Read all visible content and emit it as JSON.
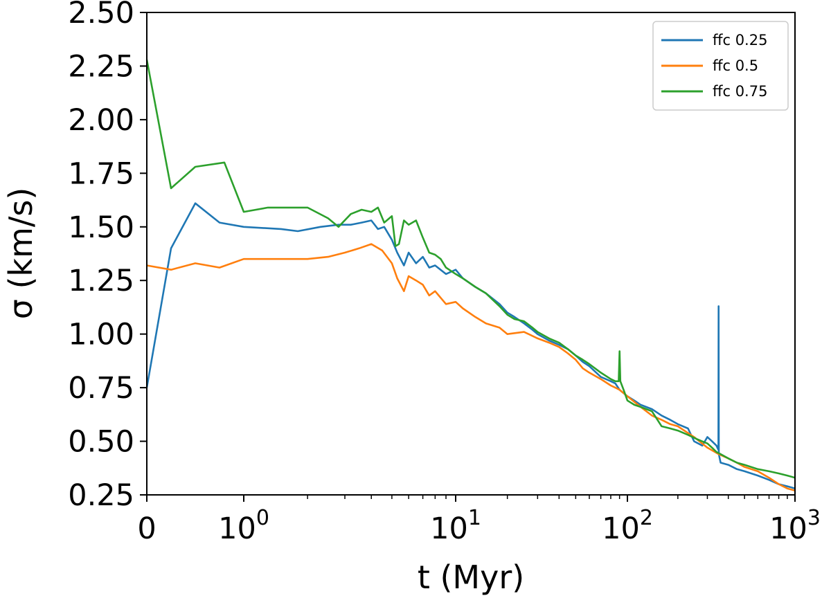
{
  "chart_data": {
    "type": "line",
    "title": "",
    "xlabel": "t (Myr)",
    "ylabel": "σ (km/s)",
    "xscale": "symlog",
    "xlim": [
      0,
      1000
    ],
    "ylim": [
      0.25,
      2.5
    ],
    "grid": false,
    "legend_position": "top-right",
    "x_ticks": [
      {
        "value": 0,
        "base": "0",
        "exp": ""
      },
      {
        "value": 1,
        "base": "10",
        "exp": "0"
      },
      {
        "value": 10,
        "base": "10",
        "exp": "1"
      },
      {
        "value": 100,
        "base": "10",
        "exp": "2"
      },
      {
        "value": 1000,
        "base": "10",
        "exp": "3"
      }
    ],
    "y_ticks": [
      "0.25",
      "0.50",
      "0.75",
      "1.00",
      "1.25",
      "1.50",
      "1.75",
      "2.00",
      "2.25",
      "2.50"
    ],
    "series": [
      {
        "name": "ffc 0.25",
        "color": "#1f77b4",
        "x": [
          0,
          0.25,
          0.5,
          0.75,
          1.0,
          1.5,
          1.8,
          2.3,
          2.8,
          3.2,
          3.6,
          4.0,
          4.3,
          4.6,
          5.0,
          5.3,
          5.7,
          6.0,
          6.5,
          7.0,
          7.5,
          8.0,
          9.0,
          10,
          11,
          13,
          15,
          18,
          20,
          22,
          25,
          28,
          30,
          35,
          40,
          45,
          50,
          55,
          60,
          70,
          80,
          85,
          90,
          100,
          110,
          120,
          140,
          160,
          180,
          200,
          230,
          250,
          280,
          300,
          320,
          340,
          349,
          350,
          351,
          360,
          400,
          450,
          500,
          600,
          700,
          800,
          900,
          1000
        ],
        "y": [
          0.75,
          1.4,
          1.61,
          1.52,
          1.5,
          1.49,
          1.48,
          1.5,
          1.51,
          1.51,
          1.52,
          1.53,
          1.49,
          1.5,
          1.44,
          1.38,
          1.32,
          1.38,
          1.33,
          1.36,
          1.31,
          1.32,
          1.28,
          1.3,
          1.26,
          1.22,
          1.19,
          1.14,
          1.1,
          1.08,
          1.05,
          1.02,
          1.0,
          0.97,
          0.95,
          0.93,
          0.9,
          0.87,
          0.85,
          0.8,
          0.78,
          0.77,
          0.74,
          0.71,
          0.69,
          0.67,
          0.65,
          0.62,
          0.6,
          0.58,
          0.56,
          0.5,
          0.48,
          0.52,
          0.5,
          0.48,
          0.46,
          1.13,
          0.44,
          0.4,
          0.39,
          0.37,
          0.36,
          0.34,
          0.32,
          0.3,
          0.29,
          0.28
        ]
      },
      {
        "name": "ffc 0.5",
        "color": "#ff7f0e",
        "x": [
          0,
          0.25,
          0.5,
          0.75,
          1.0,
          1.5,
          2.0,
          2.5,
          3.0,
          3.5,
          4.0,
          4.5,
          5.0,
          5.3,
          5.7,
          6.0,
          6.5,
          7.0,
          7.5,
          8.0,
          9.0,
          10,
          11,
          13,
          15,
          18,
          20,
          25,
          30,
          35,
          40,
          45,
          50,
          55,
          60,
          70,
          80,
          85,
          90,
          100,
          120,
          140,
          160,
          180,
          200,
          250,
          300,
          350,
          400,
          450,
          500,
          600,
          700,
          800,
          900,
          1000
        ],
        "y": [
          1.32,
          1.3,
          1.33,
          1.31,
          1.35,
          1.35,
          1.35,
          1.36,
          1.38,
          1.4,
          1.42,
          1.39,
          1.33,
          1.26,
          1.2,
          1.27,
          1.25,
          1.23,
          1.18,
          1.2,
          1.14,
          1.15,
          1.12,
          1.08,
          1.05,
          1.03,
          1.0,
          1.01,
          0.98,
          0.96,
          0.94,
          0.91,
          0.88,
          0.84,
          0.82,
          0.79,
          0.76,
          0.75,
          0.74,
          0.71,
          0.66,
          0.62,
          0.6,
          0.58,
          0.57,
          0.52,
          0.47,
          0.44,
          0.42,
          0.4,
          0.38,
          0.36,
          0.33,
          0.3,
          0.28,
          0.27
        ]
      },
      {
        "name": "ffc 0.75",
        "color": "#2ca02c",
        "x": [
          0,
          0.25,
          0.5,
          0.8,
          1.0,
          1.3,
          2.0,
          2.5,
          2.8,
          3.2,
          3.6,
          4.0,
          4.3,
          4.6,
          5.0,
          5.2,
          5.4,
          5.7,
          6.0,
          6.5,
          7.0,
          7.5,
          8.0,
          8.5,
          9.0,
          10,
          11,
          13,
          15,
          18,
          20,
          22,
          25,
          28,
          30,
          35,
          40,
          45,
          50,
          55,
          60,
          70,
          80,
          85,
          89,
          90,
          91,
          95,
          100,
          110,
          120,
          140,
          160,
          180,
          200,
          230,
          260,
          300,
          320,
          340,
          360,
          400,
          450,
          500,
          600,
          700,
          800,
          900,
          1000
        ],
        "y": [
          2.28,
          1.68,
          1.78,
          1.8,
          1.57,
          1.59,
          1.59,
          1.54,
          1.5,
          1.56,
          1.58,
          1.57,
          1.59,
          1.52,
          1.55,
          1.41,
          1.42,
          1.53,
          1.51,
          1.53,
          1.45,
          1.38,
          1.37,
          1.35,
          1.31,
          1.28,
          1.26,
          1.22,
          1.19,
          1.13,
          1.09,
          1.07,
          1.06,
          1.03,
          1.01,
          0.98,
          0.96,
          0.93,
          0.9,
          0.88,
          0.86,
          0.82,
          0.79,
          0.78,
          0.78,
          0.92,
          0.78,
          0.74,
          0.69,
          0.67,
          0.66,
          0.64,
          0.57,
          0.56,
          0.55,
          0.53,
          0.51,
          0.49,
          0.47,
          0.45,
          0.44,
          0.42,
          0.4,
          0.39,
          0.37,
          0.36,
          0.35,
          0.34,
          0.33
        ]
      }
    ]
  }
}
